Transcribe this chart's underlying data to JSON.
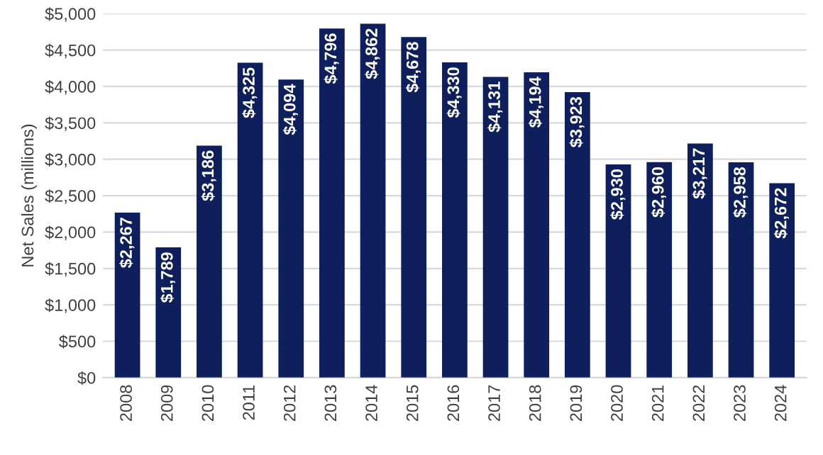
{
  "chart_data": {
    "type": "bar",
    "ylabel": "Net Sales (millions)",
    "categories": [
      "2008",
      "2009",
      "2010",
      "2011",
      "2012",
      "2013",
      "2014",
      "2015",
      "2016",
      "2017",
      "2018",
      "2019",
      "2020",
      "2021",
      "2022",
      "2023",
      "2024"
    ],
    "values": [
      2267,
      1789,
      3186,
      4325,
      4094,
      4796,
      4862,
      4678,
      4330,
      4131,
      4194,
      3923,
      2930,
      2960,
      3217,
      2958,
      2672
    ],
    "value_labels": [
      "$2,267",
      "$1,789",
      "$3,186",
      "$4,325",
      "$4,094",
      "$4,796",
      "$4,862",
      "$4,678",
      "$4,330",
      "$4,131",
      "$4,194",
      "$3,923",
      "$2,930",
      "$2,960",
      "$3,217",
      "$2,958",
      "$2,672"
    ],
    "color": "#0e1f5b",
    "ylim": [
      0,
      5000
    ],
    "yticks": [
      {
        "value": 0,
        "label": "$0"
      },
      {
        "value": 500,
        "label": "$500"
      },
      {
        "value": 1000,
        "label": "$1,000"
      },
      {
        "value": 1500,
        "label": "$1,500"
      },
      {
        "value": 2000,
        "label": "$2,000"
      },
      {
        "value": 2500,
        "label": "$2,500"
      },
      {
        "value": 3000,
        "label": "$3,000"
      },
      {
        "value": 3500,
        "label": "$3,500"
      },
      {
        "value": 4000,
        "label": "$4,000"
      },
      {
        "value": 4500,
        "label": "$4,500"
      },
      {
        "value": 5000,
        "label": "$5,000"
      }
    ],
    "grid": "y"
  }
}
